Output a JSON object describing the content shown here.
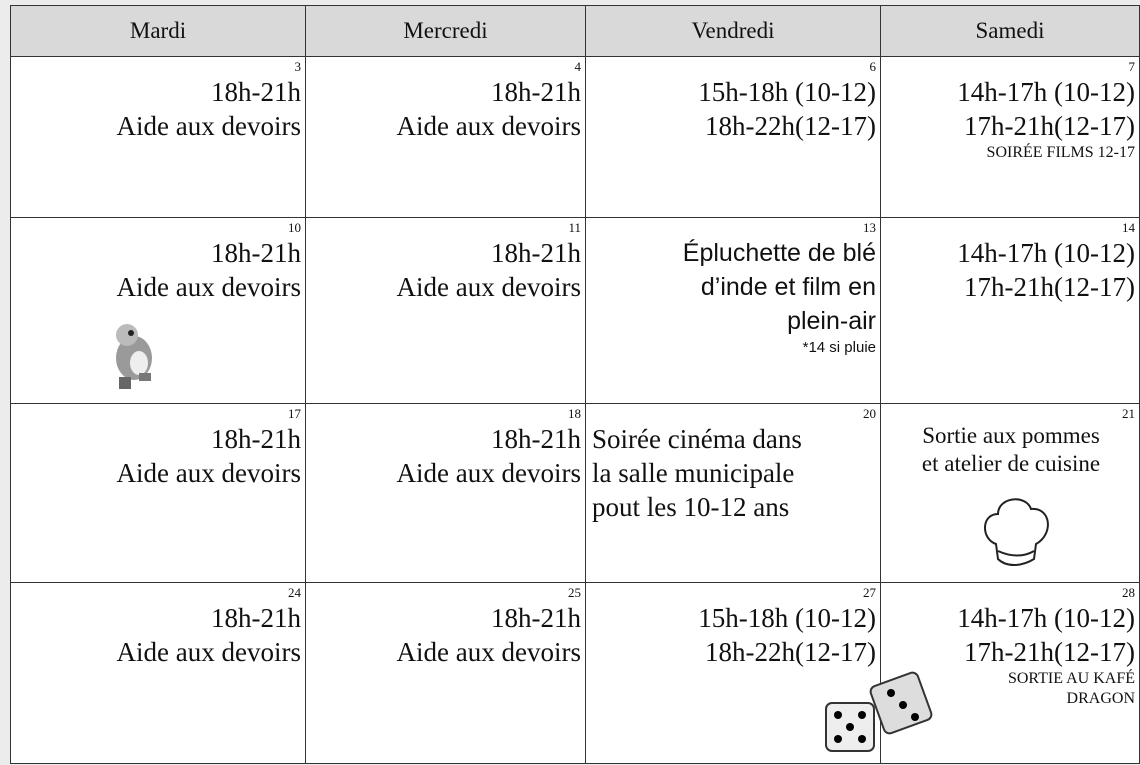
{
  "header": {
    "columns": [
      "Mardi",
      "Mercredi",
      "Vendredi",
      "Samedi"
    ]
  },
  "weeks": [
    {
      "cells": [
        {
          "day": 3,
          "lines": [
            "18h-21h",
            "Aide aux devoirs"
          ]
        },
        {
          "day": 4,
          "lines": [
            "18h-21h",
            "Aide aux devoirs"
          ]
        },
        {
          "day": 6,
          "lines": [
            "15h-18h (10-12)",
            "18h-22h(12-17)"
          ]
        },
        {
          "day": 7,
          "lines": [
            "14h-17h (10-12)",
            "17h-21h(12-17)"
          ],
          "notes": [
            "SOIRÉE FILMS 12-17"
          ]
        }
      ]
    },
    {
      "cells": [
        {
          "day": 10,
          "lines": [
            "18h-21h",
            "Aide aux devoirs"
          ]
        },
        {
          "day": 11,
          "lines": [
            "18h-21h",
            "Aide aux devoirs"
          ]
        },
        {
          "day": 13,
          "lines": [
            "Épluchette de blé",
            "d’inde et film en",
            "plein-air"
          ],
          "notes": [
            "*14 si pluie"
          ]
        },
        {
          "day": 14,
          "lines": [
            "14h-17h (10-12)",
            "17h-21h(12-17)"
          ]
        }
      ]
    },
    {
      "cells": [
        {
          "day": 17,
          "lines": [
            "18h-21h",
            "Aide aux devoirs"
          ]
        },
        {
          "day": 18,
          "lines": [
            "18h-21h",
            "Aide aux devoirs"
          ]
        },
        {
          "day": 20,
          "lines": [
            "Soirée cinéma dans",
            "la salle municipale",
            "pout les 10-12 ans"
          ]
        },
        {
          "day": 21,
          "lines": [
            "Sortie aux pommes",
            "et atelier de cuisine"
          ]
        }
      ]
    },
    {
      "cells": [
        {
          "day": 24,
          "lines": [
            "18h-21h",
            "Aide aux devoirs"
          ]
        },
        {
          "day": 25,
          "lines": [
            "18h-21h",
            "Aide aux devoirs"
          ]
        },
        {
          "day": 27,
          "lines": [
            "15h-18h (10-12)",
            "18h-22h(12-17)"
          ]
        },
        {
          "day": 28,
          "lines": [
            "14h-17h (10-12)",
            "17h-21h(12-17)"
          ],
          "notes": [
            "SORTIE AU KAFÉ",
            "DRAGON"
          ]
        }
      ]
    }
  ]
}
